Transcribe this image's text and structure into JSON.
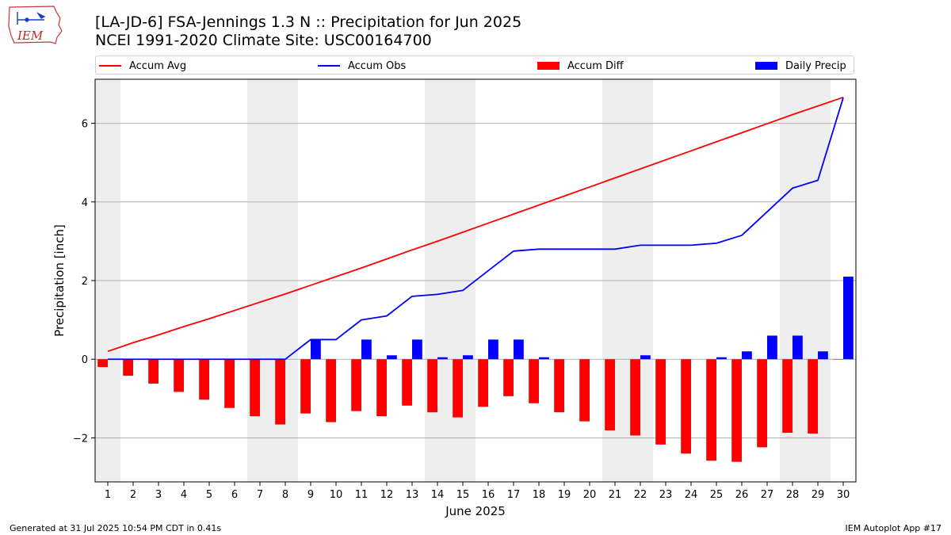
{
  "header": {
    "line1": "[LA-JD-6] FSA-Jennings 1.3 N :: Precipitation for Jun 2025",
    "line2": "NCEI 1991-2020 Climate Site: USC00164700"
  },
  "logo": {
    "text": "IEM"
  },
  "footer": {
    "left": "Generated at 31 Jul 2025 10:54 PM CDT in 0.41s",
    "right": "IEM Autoplot App #17"
  },
  "colors": {
    "avg": "#ff0000",
    "obs": "#0000ff",
    "diff": "#ff0000",
    "daily": "#0000ff",
    "weekend": "#eeeeee",
    "grid": "#b0b0b0"
  },
  "chart_data": {
    "type": "bar",
    "xlabel": "June 2025",
    "ylabel": "Precipitation [inch]",
    "ylim": [
      -3.12,
      7.12
    ],
    "yticks": [
      -2,
      0,
      2,
      4,
      6
    ],
    "days": [
      1,
      2,
      3,
      4,
      5,
      6,
      7,
      8,
      9,
      10,
      11,
      12,
      13,
      14,
      15,
      16,
      17,
      18,
      19,
      20,
      21,
      22,
      23,
      24,
      25,
      26,
      27,
      28,
      29,
      30
    ],
    "shaded_days": [
      1,
      7,
      8,
      14,
      15,
      21,
      22,
      28,
      29
    ],
    "grid": "horizontal",
    "legend_position": "top",
    "series": [
      {
        "name": "Accum Avg",
        "kind": "line",
        "values": [
          0.2,
          0.42,
          0.62,
          0.83,
          1.03,
          1.24,
          1.45,
          1.66,
          1.88,
          2.1,
          2.32,
          2.55,
          2.78,
          3.0,
          3.23,
          3.46,
          3.69,
          3.92,
          4.15,
          4.38,
          4.61,
          4.84,
          5.07,
          5.3,
          5.53,
          5.76,
          5.99,
          6.22,
          6.44,
          6.66
        ]
      },
      {
        "name": "Accum Obs",
        "kind": "line",
        "values": [
          0,
          0,
          0,
          0,
          0,
          0,
          0,
          0,
          0.5,
          0.5,
          1.0,
          1.1,
          1.6,
          1.65,
          1.75,
          2.25,
          2.75,
          2.8,
          2.8,
          2.8,
          2.8,
          2.9,
          2.9,
          2.9,
          2.95,
          3.15,
          3.75,
          4.35,
          4.55,
          6.65
        ]
      },
      {
        "name": "Accum Diff",
        "kind": "bar",
        "values": [
          -0.2,
          -0.42,
          -0.62,
          -0.83,
          -1.03,
          -1.24,
          -1.45,
          -1.66,
          -1.38,
          -1.6,
          -1.32,
          -1.45,
          -1.18,
          -1.35,
          -1.48,
          -1.21,
          -0.94,
          -1.12,
          -1.35,
          -1.58,
          -1.81,
          -1.94,
          -2.17,
          -2.4,
          -2.58,
          -2.61,
          -2.24,
          -1.87,
          -1.89,
          -0.01
        ]
      },
      {
        "name": "Daily Precip",
        "kind": "bar",
        "values": [
          0,
          0,
          0,
          0,
          0,
          0,
          0,
          0,
          0.5,
          0,
          0.5,
          0.1,
          0.5,
          0.05,
          0.1,
          0.5,
          0.5,
          0.05,
          0,
          0,
          0,
          0.1,
          0,
          0,
          0.05,
          0.2,
          0.6,
          0.6,
          0.2,
          2.1
        ]
      }
    ]
  }
}
